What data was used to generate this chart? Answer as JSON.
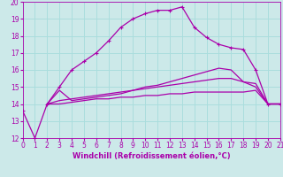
{
  "xlabel": "Windchill (Refroidissement éolien,°C)",
  "xlim": [
    0,
    21
  ],
  "ylim": [
    12,
    20
  ],
  "xticks": [
    0,
    1,
    2,
    3,
    4,
    5,
    6,
    7,
    8,
    9,
    10,
    11,
    12,
    13,
    14,
    15,
    16,
    17,
    18,
    19,
    20,
    21
  ],
  "yticks": [
    12,
    13,
    14,
    15,
    16,
    17,
    18,
    19,
    20
  ],
  "background_color": "#cce9e9",
  "line_color": "#aa00aa",
  "grid_color": "#aadddd",
  "series": [
    {
      "x": [
        0,
        1,
        2,
        3,
        4,
        5,
        6,
        7,
        8,
        9,
        10,
        11,
        12,
        13,
        14,
        15,
        16,
        17,
        18,
        19,
        20,
        21
      ],
      "y": [
        13.6,
        12.0,
        14.0,
        15.0,
        16.0,
        16.5,
        17.0,
        17.7,
        18.5,
        19.0,
        19.3,
        19.5,
        19.5,
        19.7,
        18.5,
        17.9,
        17.5,
        17.3,
        17.2,
        16.0,
        14.0,
        14.0
      ],
      "marker": "+"
    },
    {
      "x": [
        2,
        3,
        4,
        5,
        6,
        7,
        8,
        9,
        10,
        11,
        12,
        13,
        14,
        15,
        16,
        17,
        18,
        19,
        20,
        21
      ],
      "y": [
        14.0,
        14.8,
        14.2,
        14.3,
        14.4,
        14.5,
        14.6,
        14.8,
        15.0,
        15.1,
        15.3,
        15.5,
        15.7,
        15.9,
        16.1,
        16.0,
        15.3,
        15.0,
        14.0,
        14.0
      ],
      "marker": null
    },
    {
      "x": [
        2,
        3,
        4,
        5,
        6,
        7,
        8,
        9,
        10,
        11,
        12,
        13,
        14,
        15,
        16,
        17,
        18,
        19,
        20,
        21
      ],
      "y": [
        14.0,
        14.2,
        14.3,
        14.4,
        14.5,
        14.6,
        14.7,
        14.8,
        14.9,
        15.0,
        15.1,
        15.2,
        15.3,
        15.4,
        15.5,
        15.5,
        15.3,
        15.2,
        14.0,
        14.0
      ],
      "marker": null
    },
    {
      "x": [
        2,
        3,
        4,
        5,
        6,
        7,
        8,
        9,
        10,
        11,
        12,
        13,
        14,
        15,
        16,
        17,
        18,
        19,
        20,
        21
      ],
      "y": [
        14.0,
        14.0,
        14.1,
        14.2,
        14.3,
        14.3,
        14.4,
        14.4,
        14.5,
        14.5,
        14.6,
        14.6,
        14.7,
        14.7,
        14.7,
        14.7,
        14.7,
        14.8,
        14.0,
        14.0
      ],
      "marker": null
    }
  ]
}
